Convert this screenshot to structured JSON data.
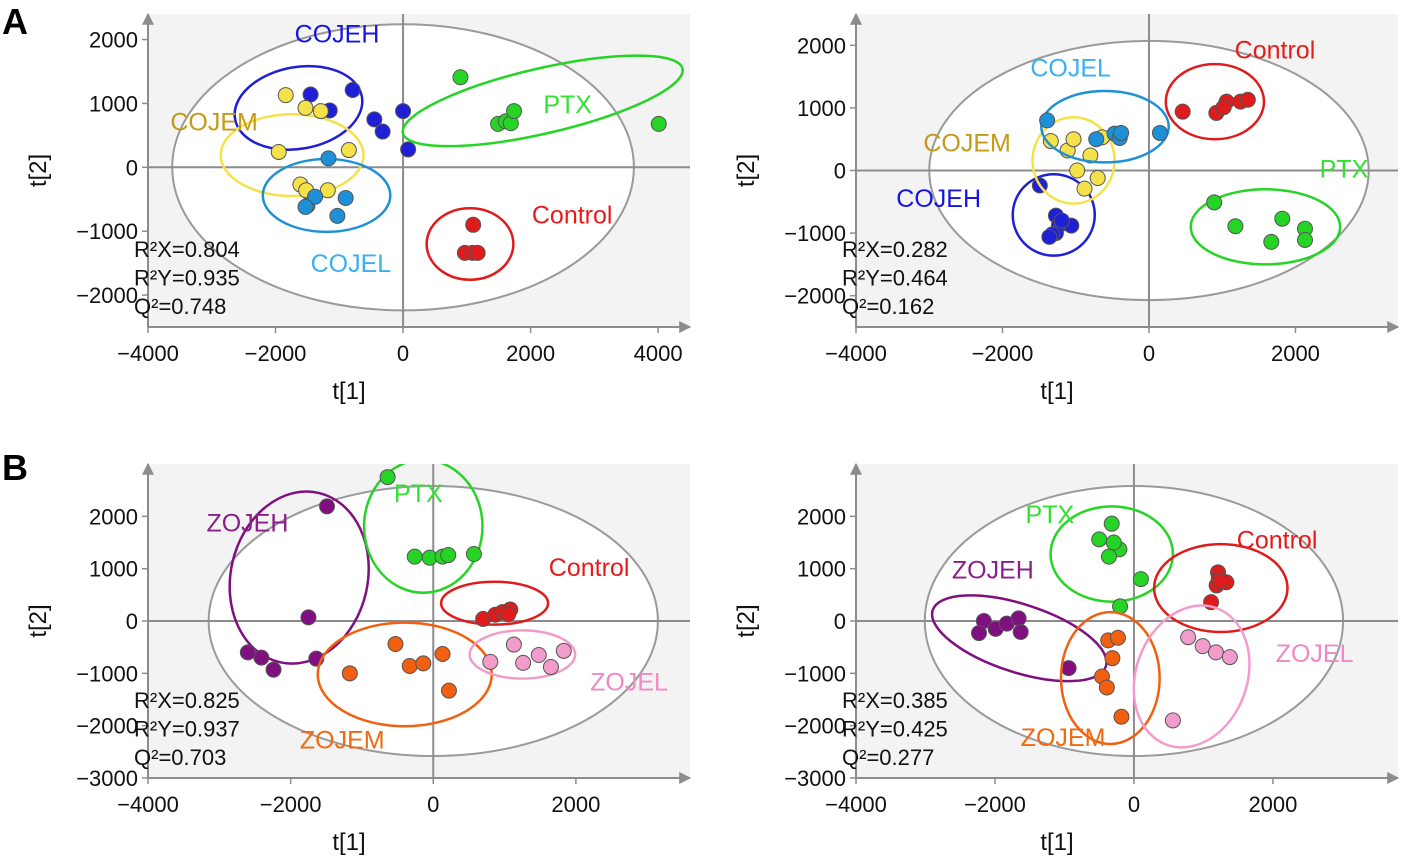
{
  "panels": {
    "a": "A",
    "b": "B"
  },
  "chart_data": [
    {
      "type": "scatter",
      "title": "",
      "xlabel": "t[1]",
      "ylabel": "t[2]",
      "xlim": [
        -4000,
        4500
      ],
      "ylim": [
        -2500,
        2400
      ],
      "xticks": [
        -4000,
        -2000,
        0,
        2000,
        4000
      ],
      "yticks": [
        -2000,
        -1000,
        0,
        1000,
        2000
      ],
      "ellipse": {
        "cx": 0,
        "cy": 0,
        "rx": 3620,
        "ry": 2240
      },
      "stats": [
        "R²X=0.804",
        "R²Y=0.935",
        "Q²=0.748"
      ],
      "groups": [
        {
          "name": "COJEH",
          "color": "#1f1fd6",
          "label_color": "#1515e0",
          "label_at": [
            -1700,
            1950
          ],
          "ellipse": {
            "cx": -1640,
            "cy": 930,
            "rx": 1010,
            "ry": 640,
            "rot": -10
          },
          "points": [
            [
              -1450,
              1140
            ],
            [
              -1150,
              890
            ],
            [
              -790,
              1210
            ],
            [
              -450,
              750
            ],
            [
              -320,
              560
            ],
            [
              0,
              880
            ],
            [
              80,
              280
            ]
          ]
        },
        {
          "name": "COJEM",
          "color": "#f5e14a",
          "label_color": "#c49a18",
          "label_at": [
            -3650,
            580
          ],
          "ellipse": {
            "cx": -1740,
            "cy": 190,
            "rx": 1120,
            "ry": 640,
            "rot": 0
          },
          "points": [
            [
              -1530,
              930
            ],
            [
              -1840,
              1130
            ],
            [
              -1950,
              240
            ],
            [
              -1610,
              -270
            ],
            [
              -1180,
              -360
            ],
            [
              -850,
              270
            ],
            [
              -1290,
              880
            ],
            [
              -1520,
              -360
            ]
          ]
        },
        {
          "name": "COJEL",
          "color": "#1e90d8",
          "label_color": "#3ab0f0",
          "label_at": [
            -1450,
            -1640
          ],
          "ellipse": {
            "cx": -1200,
            "cy": -440,
            "rx": 1000,
            "ry": 570,
            "rot": 0
          },
          "points": [
            [
              -1170,
              140
            ],
            [
              -1500,
              -600
            ],
            [
              -1380,
              -460
            ],
            [
              -1530,
              -620
            ],
            [
              -1030,
              -760
            ],
            [
              -900,
              -480
            ]
          ]
        },
        {
          "name": "PTX",
          "color": "#26d426",
          "label_color": "#33e033",
          "label_at": [
            2200,
            850
          ],
          "ellipse": {
            "cx": 2190,
            "cy": 1040,
            "rx": 2250,
            "ry": 510,
            "rot": -13
          },
          "points": [
            [
              900,
              1410
            ],
            [
              1490,
              680
            ],
            [
              1610,
              720
            ],
            [
              1690,
              690
            ],
            [
              1740,
              880
            ],
            [
              4010,
              680
            ]
          ]
        },
        {
          "name": "Control",
          "color": "#e01b1b",
          "label_color": "#e81b1b",
          "label_at": [
            2020,
            -880
          ],
          "ellipse": {
            "cx": 1050,
            "cy": -1200,
            "rx": 680,
            "ry": 560,
            "rot": 0
          },
          "points": [
            [
              1100,
              -900
            ],
            [
              970,
              -1340
            ],
            [
              1090,
              -1340
            ],
            [
              1170,
              -1340
            ]
          ]
        }
      ]
    },
    {
      "type": "scatter",
      "title": "",
      "xlabel": "t[1]",
      "ylabel": "t[2]",
      "xlim": [
        -4000,
        3400
      ],
      "ylim": [
        -2500,
        2500
      ],
      "xticks": [
        -4000,
        -2000,
        0,
        2000
      ],
      "yticks": [
        -2000,
        -1000,
        0,
        1000,
        2000
      ],
      "ellipse": {
        "cx": 0,
        "cy": 0,
        "rx": 3000,
        "ry": 2070
      },
      "stats": [
        "R²X=0.282",
        "R²Y=0.464",
        "Q²=0.162"
      ],
      "groups": [
        {
          "name": "COJEH",
          "color": "#1f1fd6",
          "label_color": "#1515e0",
          "label_at": [
            -3450,
            -580
          ],
          "ellipse": {
            "cx": -1300,
            "cy": -710,
            "rx": 560,
            "ry": 650,
            "rot": 0
          },
          "points": [
            [
              -1490,
              -240
            ],
            [
              -1270,
              -720
            ],
            [
              -1230,
              -880
            ],
            [
              -1060,
              -880
            ],
            [
              -1270,
              -1000
            ],
            [
              -1320,
              -1020
            ],
            [
              -1360,
              -1060
            ],
            [
              -1190,
              -800
            ]
          ]
        },
        {
          "name": "COJEM",
          "color": "#f5e14a",
          "label_color": "#c49a18",
          "label_at": [
            -3080,
            300
          ],
          "ellipse": {
            "cx": -1030,
            "cy": 160,
            "rx": 560,
            "ry": 690,
            "rot": 0
          },
          "points": [
            [
              -1340,
              470
            ],
            [
              -1110,
              320
            ],
            [
              -980,
              0
            ],
            [
              -800,
              240
            ],
            [
              -700,
              -120
            ],
            [
              -880,
              -290
            ],
            [
              -1030,
              500
            ],
            [
              -640,
              530
            ]
          ]
        },
        {
          "name": "COJEL",
          "color": "#1e90d8",
          "label_color": "#3ab0f0",
          "label_at": [
            -1620,
            1500
          ],
          "ellipse": {
            "cx": -600,
            "cy": 700,
            "rx": 870,
            "ry": 570,
            "rot": 0
          },
          "points": [
            [
              -1390,
              800
            ],
            [
              -470,
              590
            ],
            [
              -400,
              520
            ],
            [
              -380,
              600
            ],
            [
              150,
              600
            ],
            [
              -720,
              500
            ]
          ]
        },
        {
          "name": "Control",
          "color": "#e01b1b",
          "label_color": "#e81b1b",
          "label_at": [
            1170,
            1790
          ],
          "ellipse": {
            "cx": 900,
            "cy": 1100,
            "rx": 670,
            "ry": 600,
            "rot": 0
          },
          "points": [
            [
              460,
              940
            ],
            [
              920,
              920
            ],
            [
              1060,
              1100
            ],
            [
              1250,
              1100
            ],
            [
              1020,
              1010
            ],
            [
              1350,
              1130
            ]
          ]
        },
        {
          "name": "PTX",
          "color": "#26d426",
          "label_color": "#33e033",
          "label_at": [
            2330,
            -110
          ],
          "ellipse": {
            "cx": 1590,
            "cy": -900,
            "rx": 1020,
            "ry": 600,
            "rot": 0
          },
          "points": [
            [
              890,
              -510
            ],
            [
              1180,
              -890
            ],
            [
              1820,
              -770
            ],
            [
              2130,
              -930
            ],
            [
              1670,
              -1140
            ],
            [
              2130,
              -1110
            ]
          ]
        }
      ]
    },
    {
      "type": "scatter",
      "title": "",
      "xlabel": "t[1]",
      "ylabel": "t[2]",
      "xlim": [
        -4000,
        3600
      ],
      "ylim": [
        -3000,
        3000
      ],
      "xticks": [
        -4000,
        -2000,
        0,
        2000
      ],
      "yticks": [
        -3000,
        -2000,
        -1000,
        0,
        1000,
        2000
      ],
      "ellipse": {
        "cx": 0,
        "cy": 0,
        "rx": 3150,
        "ry": 2580
      },
      "stats": [
        "R²X=0.825",
        "R²Y=0.937",
        "Q²=0.703"
      ],
      "groups": [
        {
          "name": "ZOJEH",
          "color": "#800f80",
          "label_color": "#8a1f8a",
          "label_at": [
            -3180,
            1710
          ],
          "ellipse": {
            "cx": -1880,
            "cy": 830,
            "rx": 960,
            "ry": 1660,
            "rot": 13
          },
          "points": [
            [
              -1490,
              2190
            ],
            [
              -1750,
              70
            ],
            [
              -2600,
              -600
            ],
            [
              -2410,
              -700
            ],
            [
              -2240,
              -930
            ],
            [
              -1640,
              -720
            ]
          ]
        },
        {
          "name": "PTX",
          "color": "#26d426",
          "label_color": "#33e033",
          "label_at": [
            -550,
            2270
          ],
          "ellipse": {
            "cx": -140,
            "cy": 1810,
            "rx": 830,
            "ry": 1270,
            "rot": 0
          },
          "points": [
            [
              -640,
              2750
            ],
            [
              -260,
              1230
            ],
            [
              -50,
              1210
            ],
            [
              130,
              1230
            ],
            [
              210,
              1260
            ],
            [
              570,
              1280
            ]
          ]
        },
        {
          "name": "ZOJEM",
          "color": "#f06010",
          "label_color": "#f06a10",
          "label_at": [
            -1870,
            -2440
          ],
          "ellipse": {
            "cx": -400,
            "cy": -1020,
            "rx": 1220,
            "ry": 990,
            "rot": 0
          },
          "points": [
            [
              -1170,
              -1000
            ],
            [
              -530,
              -440
            ],
            [
              -330,
              -860
            ],
            [
              -140,
              -810
            ],
            [
              130,
              -630
            ],
            [
              220,
              -1330
            ]
          ]
        },
        {
          "name": "Control",
          "color": "#e01b1b",
          "label_color": "#e81b1b",
          "label_at": [
            1620,
            860
          ],
          "ellipse": {
            "cx": 860,
            "cy": 340,
            "rx": 750,
            "ry": 410,
            "rot": 0
          },
          "points": [
            [
              700,
              40
            ],
            [
              870,
              120
            ],
            [
              970,
              170
            ],
            [
              1080,
              220
            ],
            [
              1050,
              130
            ]
          ]
        },
        {
          "name": "ZOJEL",
          "color": "#f29ccc",
          "label_color": "#ef88c4",
          "label_at": [
            2200,
            -1330
          ],
          "ellipse": {
            "cx": 1250,
            "cy": -640,
            "rx": 740,
            "ry": 460,
            "rot": 0
          },
          "points": [
            [
              800,
              -780
            ],
            [
              1130,
              -450
            ],
            [
              1260,
              -800
            ],
            [
              1480,
              -650
            ],
            [
              1650,
              -880
            ],
            [
              1830,
              -570
            ]
          ]
        }
      ]
    },
    {
      "type": "scatter",
      "title": "",
      "xlabel": "t[1]",
      "ylabel": "t[2]",
      "xlim": [
        -4000,
        3800
      ],
      "ylim": [
        -3000,
        3000
      ],
      "xticks": [
        -4000,
        -2000,
        0,
        2000
      ],
      "yticks": [
        -3000,
        -2000,
        -1000,
        0,
        1000,
        2000
      ],
      "ellipse": {
        "cx": 0,
        "cy": 0,
        "rx": 3010,
        "ry": 2580
      },
      "stats": [
        "R²X=0.385",
        "R²Y=0.425",
        "Q²=0.277"
      ],
      "groups": [
        {
          "name": "PTX",
          "color": "#26d426",
          "label_color": "#33e033",
          "label_at": [
            -1560,
            1870
          ],
          "ellipse": {
            "cx": -320,
            "cy": 1280,
            "rx": 880,
            "ry": 910,
            "rot": 0
          },
          "points": [
            [
              -320,
              1860
            ],
            [
              -500,
              1560
            ],
            [
              -210,
              1370
            ],
            [
              -290,
              1500
            ],
            [
              -360,
              1230
            ],
            [
              100,
              800
            ],
            [
              -200,
              280
            ]
          ]
        },
        {
          "name": "Control",
          "color": "#e01b1b",
          "label_color": "#e81b1b",
          "label_at": [
            1480,
            1390
          ],
          "ellipse": {
            "cx": 1250,
            "cy": 630,
            "rx": 960,
            "ry": 840,
            "rot": 0
          },
          "points": [
            [
              1210,
              930
            ],
            [
              1220,
              810
            ],
            [
              1330,
              740
            ],
            [
              1190,
              680
            ],
            [
              1110,
              360
            ],
            [
              1240,
              760
            ]
          ]
        },
        {
          "name": "ZOJEH",
          "color": "#800f80",
          "label_color": "#8a1f8a",
          "label_at": [
            -2620,
            810
          ],
          "ellipse": {
            "cx": -1650,
            "cy": -330,
            "rx": 1310,
            "ry": 650,
            "rot": 18
          },
          "points": [
            [
              -2160,
              0
            ],
            [
              -1990,
              -150
            ],
            [
              -1830,
              -50
            ],
            [
              -1660,
              50
            ],
            [
              -2230,
              -230
            ],
            [
              -1630,
              -210
            ],
            [
              -940,
              -900
            ]
          ]
        },
        {
          "name": "ZOJEM",
          "color": "#f06010",
          "label_color": "#f06a10",
          "label_at": [
            -1630,
            -2390
          ],
          "ellipse": {
            "cx": -340,
            "cy": -1090,
            "rx": 710,
            "ry": 1260,
            "rot": 0
          },
          "points": [
            [
              -370,
              -370
            ],
            [
              -230,
              -320
            ],
            [
              -310,
              -710
            ],
            [
              -460,
              -1060
            ],
            [
              -390,
              -1270
            ],
            [
              -180,
              -1830
            ]
          ]
        },
        {
          "name": "ZOJEL",
          "color": "#f29ccc",
          "label_color": "#ef88c4",
          "label_at": [
            2040,
            -780
          ],
          "ellipse": {
            "cx": 830,
            "cy": -1060,
            "rx": 800,
            "ry": 1390,
            "rot": 20
          },
          "points": [
            [
              780,
              -310
            ],
            [
              990,
              -480
            ],
            [
              1180,
              -600
            ],
            [
              1380,
              -690
            ],
            [
              560,
              -1900
            ]
          ]
        }
      ]
    }
  ]
}
